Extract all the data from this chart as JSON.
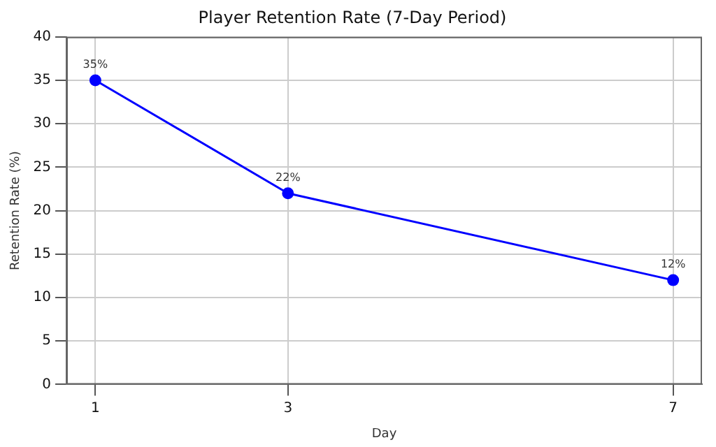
{
  "chart_data": {
    "type": "line",
    "title": "Player Retention Rate (7-Day Period)",
    "xlabel": "Day",
    "ylabel": "Retention Rate (%)",
    "x": [
      1,
      3,
      7
    ],
    "series": [
      {
        "color": "#0000ff",
        "values": [
          35,
          22,
          12
        ],
        "value_labels": [
          "35%",
          "22%",
          "12%"
        ]
      }
    ],
    "xlim": [
      0.7,
      7.3
    ],
    "xticks": [
      1,
      3,
      7
    ],
    "ylim": [
      0,
      40
    ],
    "yticks": [
      0,
      5,
      10,
      15,
      20,
      25,
      30,
      35,
      40
    ],
    "grid": true,
    "marker": "circle",
    "line_style": "solid",
    "legend": false
  }
}
